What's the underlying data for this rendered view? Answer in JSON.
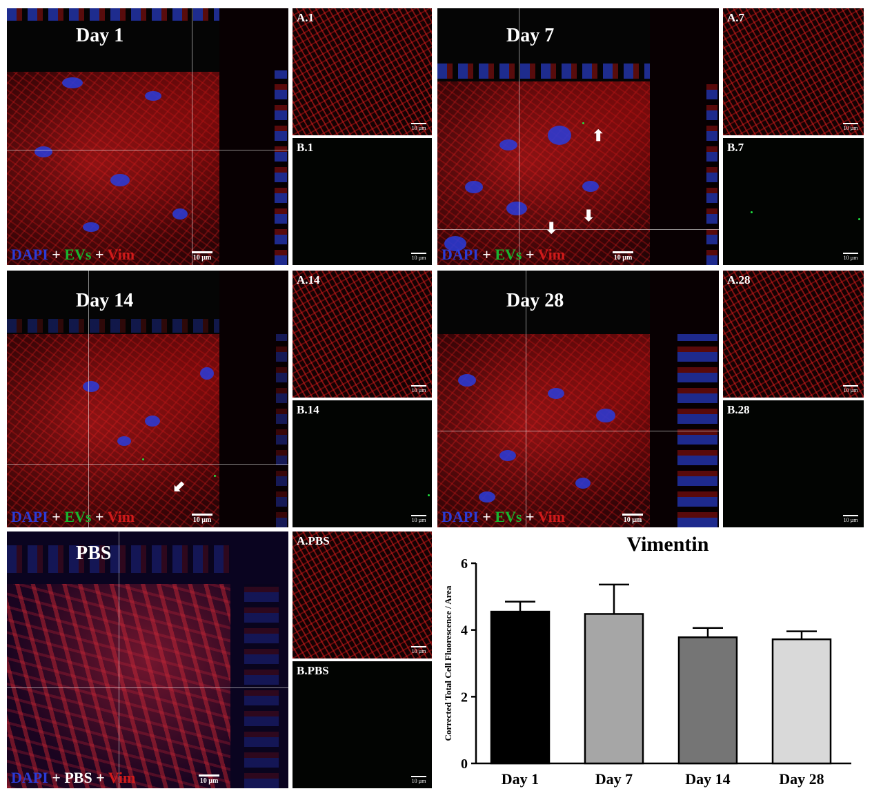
{
  "panels": {
    "day1": {
      "title": "Day 1",
      "a_label": "A.1",
      "b_label": "B.1"
    },
    "day7": {
      "title": "Day 7",
      "a_label": "A.7",
      "b_label": "B.7"
    },
    "day14": {
      "title": "Day 14",
      "a_label": "A.14",
      "b_label": "B.14"
    },
    "day28": {
      "title": "Day 28",
      "a_label": "A.28",
      "b_label": "B.28"
    },
    "pbs": {
      "title": "PBS",
      "a_label": "A.PBS",
      "b_label": "B.PBS"
    }
  },
  "legend": {
    "dapi": "DAPI",
    "plus": "+",
    "evs": "EVs",
    "vim": "Vim",
    "pbs": "PBS"
  },
  "scale_bar": "10 µm",
  "colors": {
    "dapi": "#2b3bd6",
    "evs": "#17b52e",
    "vim": "#d11a1a"
  },
  "chart_data": {
    "type": "bar",
    "title": "Vimentin",
    "ylabel": "Corrected Total Cell Fluorescence / Area",
    "xlabel": "",
    "categories": [
      "Day 1",
      "Day 7",
      "Day 14",
      "Day 28"
    ],
    "values": [
      4.55,
      4.48,
      3.78,
      3.72
    ],
    "errors": [
      0.3,
      0.88,
      0.28,
      0.24
    ],
    "bar_colors": [
      "#000000",
      "#a6a6a6",
      "#757575",
      "#d9d9d9"
    ],
    "ylim": [
      0,
      6
    ],
    "yticks": [
      "0",
      "2",
      "4",
      "6"
    ],
    "grid": false
  }
}
